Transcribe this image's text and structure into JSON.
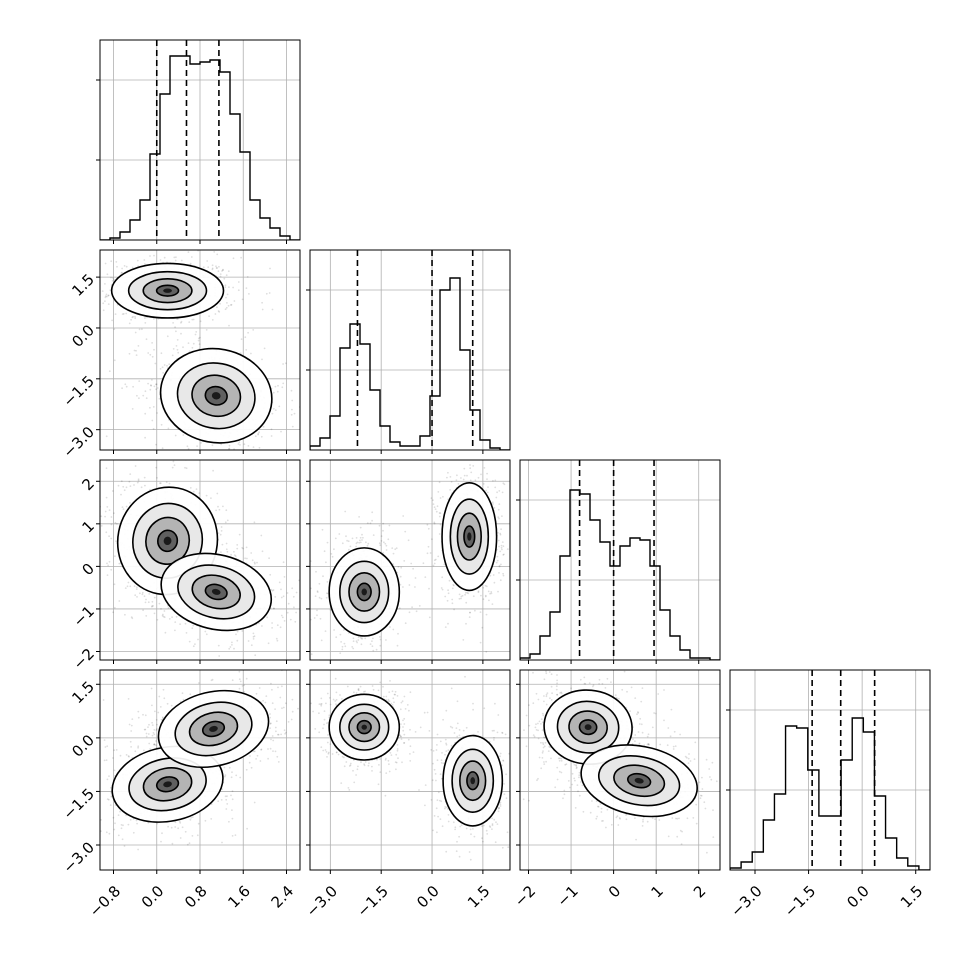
{
  "chart_data": {
    "type": "corner",
    "grid": true,
    "parameters": [
      {
        "ticks": [
          -0.8,
          0.0,
          0.8,
          1.6,
          2.4
        ],
        "tick_labels": [
          "−0.8",
          "0.0",
          "0.8",
          "1.6",
          "2.4"
        ],
        "range": [
          -1.05,
          2.65
        ],
        "quantiles": [
          0.0,
          0.55,
          1.15
        ],
        "histogram": [
          0.0,
          0.01,
          0.04,
          0.1,
          0.2,
          0.43,
          0.73,
          0.92,
          0.92,
          0.88,
          0.89,
          0.9,
          0.84,
          0.63,
          0.44,
          0.2,
          0.11,
          0.06,
          0.02,
          0.0
        ]
      },
      {
        "ticks": [
          -3.0,
          -1.5,
          0.0,
          1.5
        ],
        "tick_labels": [
          "−3.0",
          "−1.5",
          "0.0",
          "1.5"
        ],
        "range": [
          -3.6,
          2.3
        ],
        "quantiles": [
          -2.2,
          0.0,
          1.2
        ],
        "histogram": [
          0.02,
          0.06,
          0.17,
          0.51,
          0.63,
          0.53,
          0.3,
          0.12,
          0.04,
          0.02,
          0.02,
          0.07,
          0.27,
          0.8,
          0.86,
          0.5,
          0.2,
          0.05,
          0.01,
          0.0
        ]
      },
      {
        "ticks": [
          -2,
          -1,
          0,
          1,
          2
        ],
        "tick_labels": [
          "−2",
          "−1",
          "0",
          "1",
          "2"
        ],
        "range": [
          -2.2,
          2.5
        ],
        "quantiles": [
          -0.8,
          0.0,
          0.95
        ],
        "histogram": [
          0.01,
          0.03,
          0.12,
          0.24,
          0.52,
          0.85,
          0.83,
          0.7,
          0.59,
          0.47,
          0.57,
          0.61,
          0.6,
          0.47,
          0.25,
          0.12,
          0.05,
          0.01,
          0.01,
          0.0
        ]
      },
      {
        "ticks": [
          -3.0,
          -1.5,
          0.0,
          1.5
        ],
        "tick_labels": [
          "−3.0",
          "−1.5",
          "0.0",
          "1.5"
        ],
        "range": [
          -3.7,
          1.9
        ],
        "quantiles": [
          -1.4,
          -0.6,
          0.35
        ],
        "histogram": [
          0.01,
          0.04,
          0.09,
          0.25,
          0.38,
          0.72,
          0.71,
          0.5,
          0.27,
          0.27,
          0.55,
          0.76,
          0.69,
          0.37,
          0.16,
          0.06,
          0.02,
          0.0
        ]
      }
    ],
    "pairs": [
      {
        "x": 0,
        "y": 1,
        "blobs": [
          {
            "cx": 0.2,
            "cy": 1.1,
            "sx": 0.45,
            "sy": 0.35,
            "rho": 0.0
          },
          {
            "cx": 1.1,
            "cy": -2.0,
            "sx": 0.45,
            "sy": 0.6,
            "rho": -0.2
          }
        ]
      },
      {
        "x": 0,
        "y": 2,
        "blobs": [
          {
            "cx": 0.2,
            "cy": 0.6,
            "sx": 0.4,
            "sy": 0.55,
            "rho": -0.2
          },
          {
            "cx": 1.1,
            "cy": -0.6,
            "sx": 0.45,
            "sy": 0.38,
            "rho": -0.25
          }
        ]
      },
      {
        "x": 1,
        "y": 2,
        "blobs": [
          {
            "cx": -2.0,
            "cy": -0.6,
            "sx": 0.45,
            "sy": 0.45,
            "rho": 0.0
          },
          {
            "cx": 1.1,
            "cy": 0.7,
            "sx": 0.35,
            "sy": 0.55,
            "rho": 0.0
          }
        ]
      },
      {
        "x": 0,
        "y": 3,
        "blobs": [
          {
            "cx": 0.2,
            "cy": -1.3,
            "sx": 0.45,
            "sy": 0.45,
            "rho": 0.2
          },
          {
            "cx": 1.05,
            "cy": 0.25,
            "sx": 0.45,
            "sy": 0.45,
            "rho": 0.25
          }
        ]
      },
      {
        "x": 1,
        "y": 3,
        "blobs": [
          {
            "cx": -2.0,
            "cy": 0.3,
            "sx": 0.45,
            "sy": 0.4,
            "rho": 0.0
          },
          {
            "cx": 1.2,
            "cy": -1.2,
            "sx": 0.38,
            "sy": 0.55,
            "rho": 0.0
          }
        ]
      },
      {
        "x": 2,
        "y": 3,
        "blobs": [
          {
            "cx": -0.6,
            "cy": 0.3,
            "sx": 0.45,
            "sy": 0.45,
            "rho": -0.1
          },
          {
            "cx": 0.6,
            "cy": -1.2,
            "sx": 0.6,
            "sy": 0.42,
            "rho": -0.2
          }
        ]
      }
    ],
    "contour_levels": [
      0.2,
      0.5,
      0.8
    ]
  }
}
